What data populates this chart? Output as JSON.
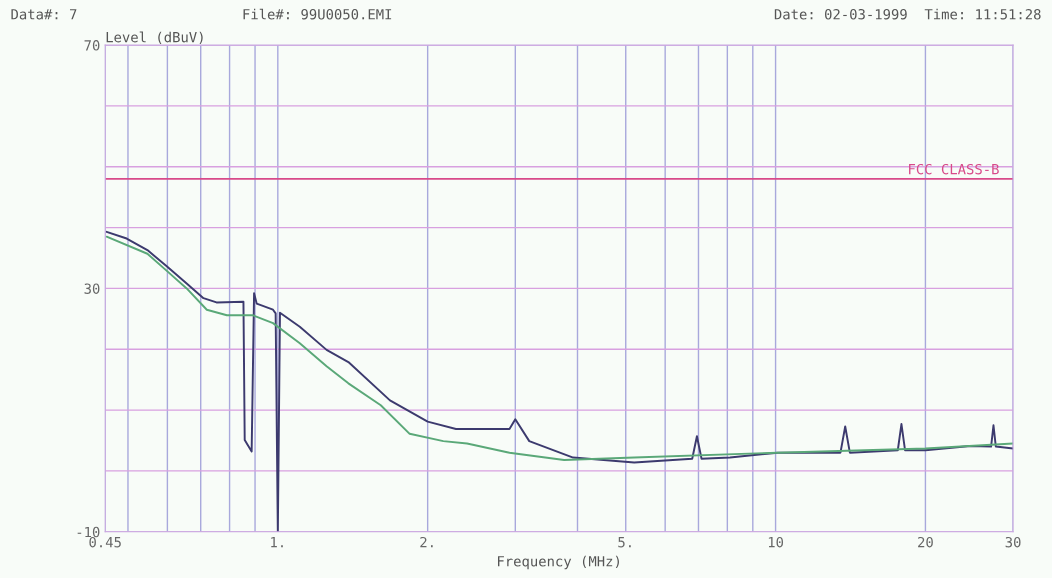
{
  "chart_data": {
    "type": "line",
    "xlabel": "Frequency (MHz)",
    "ylabel": "Level (dBuV)",
    "log": "x",
    "grid": true,
    "xlim": [
      0.45,
      30
    ],
    "ylim": [
      -10,
      70
    ],
    "xticks": [
      {
        "value": 0.45,
        "label": "0.45"
      },
      {
        "value": 0.5,
        "label": null
      },
      {
        "value": 0.6,
        "label": null
      },
      {
        "value": 0.7,
        "label": null
      },
      {
        "value": 0.8,
        "label": null
      },
      {
        "value": 0.9,
        "label": null
      },
      {
        "value": 1,
        "label": "1."
      },
      {
        "value": 2,
        "label": "2."
      },
      {
        "value": 3,
        "label": null
      },
      {
        "value": 4,
        "label": null
      },
      {
        "value": 5,
        "label": "5."
      },
      {
        "value": 6,
        "label": null
      },
      {
        "value": 7,
        "label": null
      },
      {
        "value": 8,
        "label": null
      },
      {
        "value": 9,
        "label": null
      },
      {
        "value": 10,
        "label": "10"
      },
      {
        "value": 20,
        "label": "20"
      },
      {
        "value": 30,
        "label": "30"
      }
    ],
    "yticks": [
      -10,
      {
        "value": 0,
        "label": null
      },
      {
        "value": 10,
        "label": null
      },
      {
        "value": 20,
        "label": null
      },
      30,
      {
        "value": 40,
        "label": null
      },
      {
        "value": 50,
        "label": null
      },
      {
        "value": 60,
        "label": null
      },
      70
    ],
    "ref_lines": [
      {
        "axis": "y",
        "value": 48,
        "label": "FCC CLASS-B",
        "color": "#d84a8a"
      }
    ],
    "annotations": [
      "Data#: 7",
      "File#: 99U0050.EMI",
      "Date: 02-03-1999  Time: 11:51:28"
    ],
    "series": [
      {
        "color": "#3c3a6e",
        "x": [
          0.453,
          0.497,
          0.547,
          0.599,
          0.656,
          0.709,
          0.753,
          0.853,
          0.858,
          0.886,
          0.896,
          0.907,
          0.978,
          0.99,
          1.0,
          1.01,
          1.107,
          1.253,
          1.386,
          1.68,
          2.0,
          2.28,
          2.92,
          3.0,
          3.2,
          3.92,
          5.2,
          6.8,
          6.95,
          7.1,
          8.1,
          10.1,
          13.5,
          13.8,
          14.1,
          17.6,
          17.9,
          18.2,
          20,
          24.6,
          27.1,
          27.4,
          27.7,
          30
        ],
        "values": [
          39.3,
          38.2,
          36.3,
          33.6,
          30.8,
          28.4,
          27.7,
          27.8,
          5.1,
          3.2,
          29.2,
          27.5,
          26.5,
          25.9,
          -10,
          26,
          23.7,
          19.9,
          17.9,
          11.6,
          8.1,
          6.9,
          6.9,
          8.5,
          4.9,
          2.2,
          1.4,
          2.0,
          5.7,
          2.0,
          2.2,
          3.0,
          3.0,
          7.3,
          3.0,
          3.4,
          7.7,
          3.4,
          3.4,
          4.1,
          4.0,
          7.5,
          4.0,
          3.7
        ]
      },
      {
        "color": "#5aa878",
        "x": [
          0.453,
          0.547,
          0.6,
          0.656,
          0.72,
          0.79,
          0.89,
          0.978,
          1.107,
          1.253,
          1.386,
          1.61,
          1.84,
          2.15,
          2.4,
          2.92,
          3.76,
          5.2,
          10.1,
          20,
          30
        ],
        "values": [
          38.5,
          35.7,
          32.8,
          30.0,
          26.5,
          25.6,
          25.6,
          24.3,
          21.0,
          17.2,
          14.4,
          10.8,
          6.1,
          4.9,
          4.5,
          3.0,
          1.8,
          2.2,
          3.0,
          3.7,
          4.5
        ]
      }
    ]
  }
}
